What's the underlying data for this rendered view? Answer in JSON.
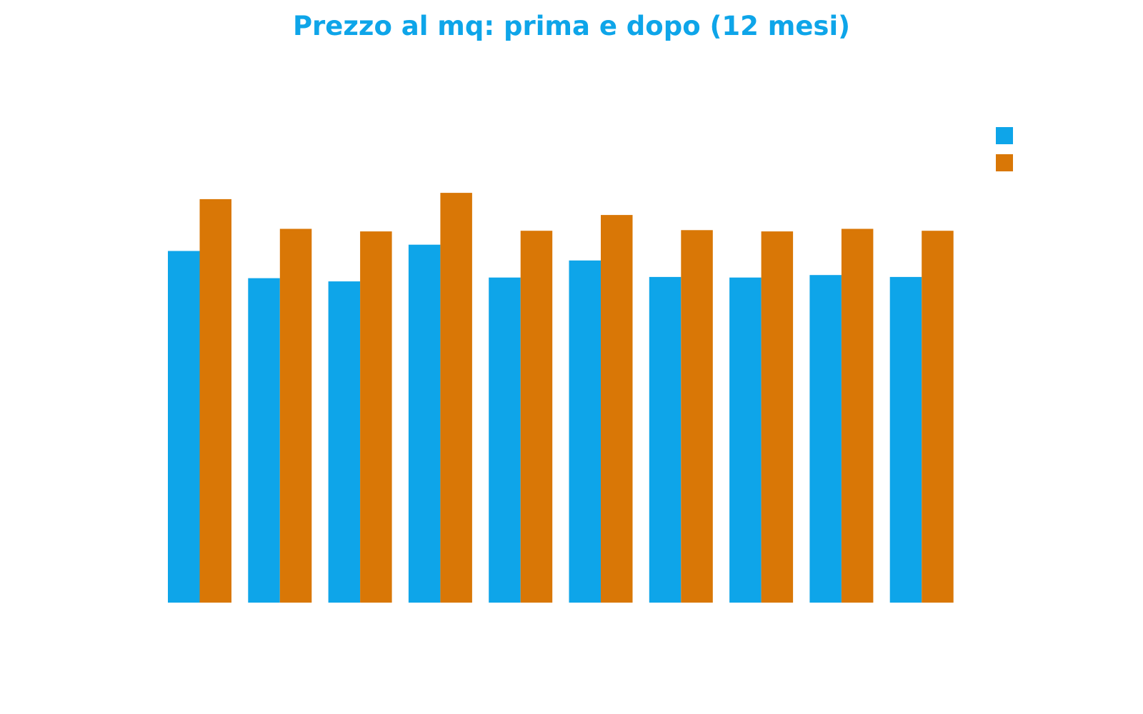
{
  "chart_data": {
    "type": "bar",
    "title": "Prezzo al mq: prima e dopo (12 mesi)",
    "xlabel": "",
    "ylabel": "",
    "categories": [
      "",
      "",
      "",
      "",
      "",
      "",
      "",
      "",
      "",
      ""
    ],
    "series": [
      {
        "color": "#0ea5e9",
        "values": [
          2780,
          2565,
          2540,
          2830,
          2570,
          2705,
          2575,
          2570,
          2590,
          2575
        ]
      },
      {
        "color": "#d97706",
        "values": [
          3190,
          2955,
          2935,
          3240,
          2940,
          3065,
          2945,
          2935,
          2955,
          2940
        ]
      }
    ],
    "ylim": [
      0,
      4200
    ],
    "grid": false,
    "legend": "top-right"
  }
}
